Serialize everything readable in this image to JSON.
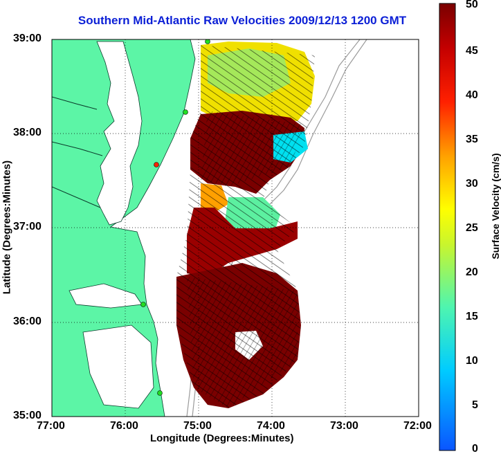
{
  "title": "Southern Mid-Atlantic Raw Velocities 2009/12/13 1200 GMT",
  "xlabel": "Longitude (Degrees:Minutes)",
  "ylabel": "Latitude (Degrees:Minutes)",
  "colorbar": {
    "label": "Surface Velocity (cm/s)",
    "ticks": [
      "0",
      "5",
      "10",
      "15",
      "20",
      "25",
      "30",
      "35",
      "40",
      "45",
      "50"
    ],
    "range": [
      0,
      50
    ]
  },
  "x_ticks": [
    "77:00",
    "76:00",
    "75:00",
    "74:00",
    "73:00",
    "72:00"
  ],
  "y_ticks": [
    "39:00",
    "38:00",
    "37:00",
    "36:00",
    "35:00"
  ],
  "colors": {
    "land": "#5cf5a6",
    "ocean": "#ffffff",
    "title": "#0b1fd6"
  }
}
